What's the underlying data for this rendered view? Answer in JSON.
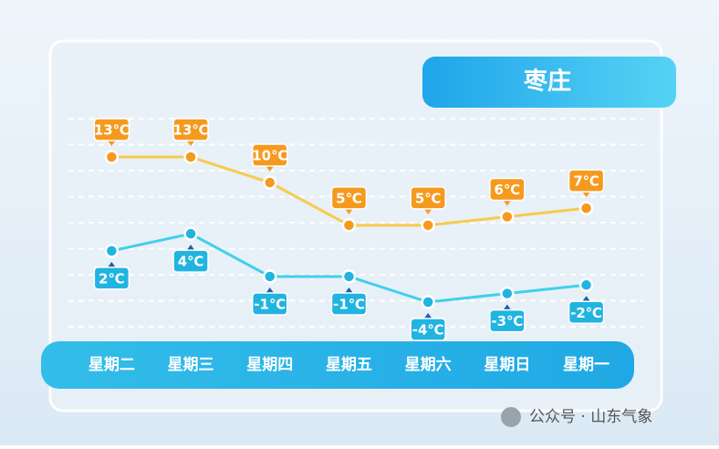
{
  "chart_data": {
    "type": "line",
    "title": "枣庄",
    "categories": [
      "星期二",
      "星期三",
      "星期四",
      "星期五",
      "星期六",
      "星期日",
      "星期一"
    ],
    "series": [
      {
        "color": "#f59a1f",
        "line_color": "#f7cb4d",
        "values": [
          13,
          13,
          10,
          5,
          5,
          6,
          7
        ],
        "value_labels": [
          "13℃",
          "13℃",
          "10℃",
          "5℃",
          "5℃",
          "6℃",
          "7℃"
        ],
        "label_side": "above"
      },
      {
        "color": "#22b4e0",
        "line_color": "#3fd0ec",
        "values": [
          2,
          4,
          -1,
          -1,
          -4,
          -3,
          -2
        ],
        "value_labels": [
          "2℃",
          "4℃",
          "-1℃",
          "-1℃",
          "-4℃",
          "-3℃",
          "-2℃"
        ],
        "label_side": "below"
      }
    ],
    "grid": true
  },
  "watermark": "公众号 · 山东气象"
}
